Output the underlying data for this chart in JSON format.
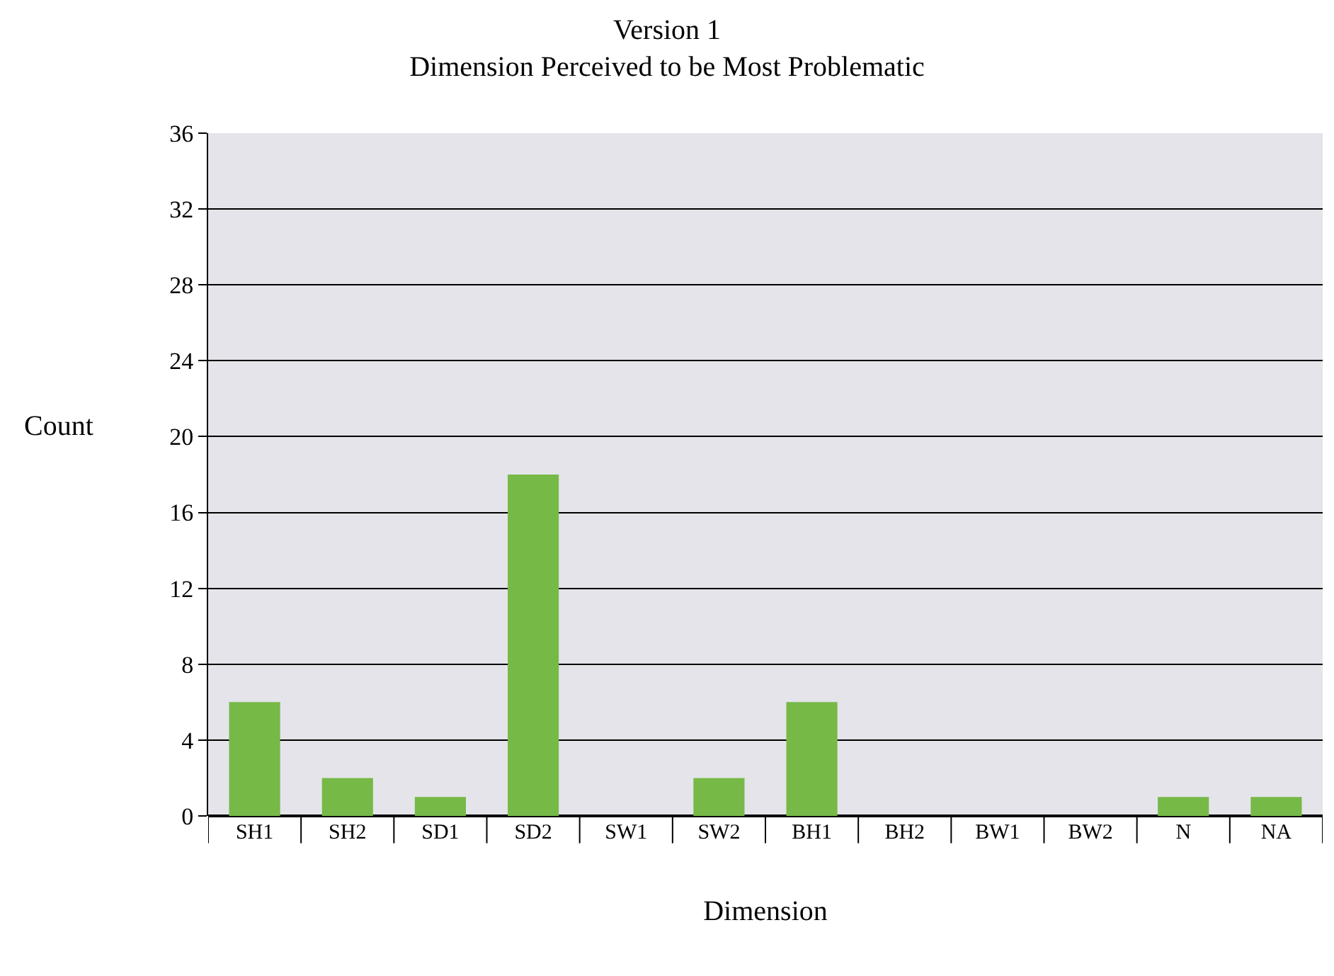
{
  "chart_data": {
    "type": "bar",
    "title": "Version 1\nDimension Perceived to be Most Problematic",
    "xlabel": "Dimension",
    "ylabel": "Count",
    "categories": [
      "SH1",
      "SH2",
      "SD1",
      "SD2",
      "SW1",
      "SW2",
      "BH1",
      "BH2",
      "BW1",
      "BW2",
      "N",
      "NA"
    ],
    "values": [
      6,
      2,
      1,
      18,
      0,
      2,
      6,
      0,
      0,
      0,
      1,
      1
    ],
    "color": "#76b947",
    "ylim": [
      0,
      36
    ],
    "yticks": [
      0,
      4,
      8,
      12,
      16,
      20,
      24,
      28,
      32,
      36
    ],
    "grid": "y"
  }
}
